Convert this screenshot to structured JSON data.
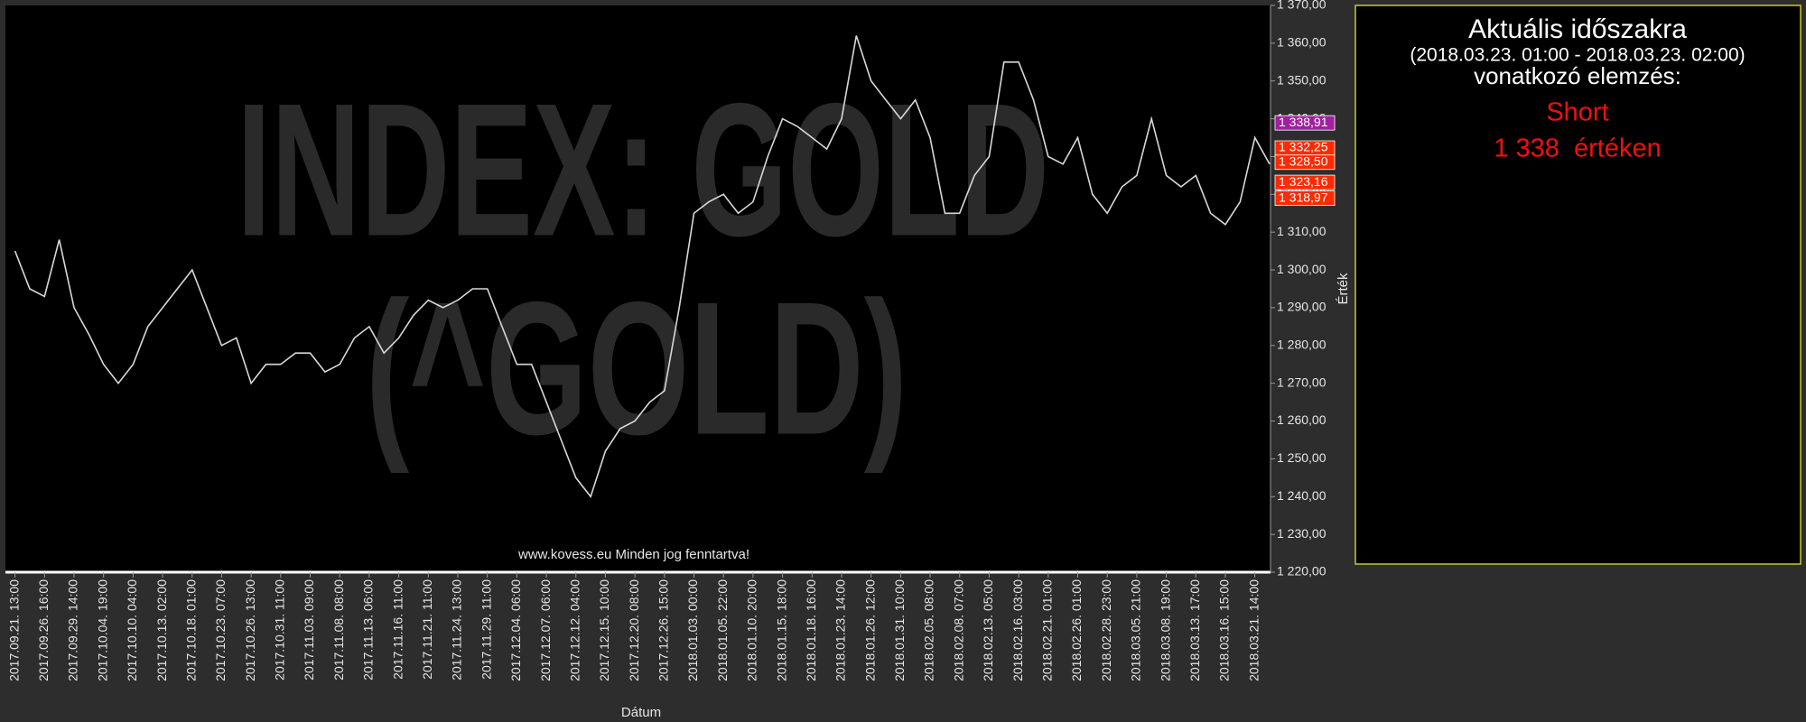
{
  "chart_data": {
    "type": "line",
    "watermark": [
      "INDEX: GOLD",
      "(^GOLD)"
    ],
    "footer": "www.kovess.eu Minden jog fenntartva!",
    "x_label": "Dátum",
    "y_label": "Érték",
    "color": "#d8d8d8",
    "categories": [
      "2017.09.21. 13:00",
      null,
      "2017.09.26. 16:00",
      null,
      "2017.09.29. 14:00",
      null,
      "2017.10.04. 19:00",
      null,
      "2017.10.10. 04:00",
      null,
      "2017.10.13. 02:00",
      null,
      "2017.10.18. 01:00",
      null,
      "2017.10.23. 07:00",
      null,
      "2017.10.26. 13:00",
      null,
      "2017.10.31. 11:00",
      null,
      "2017.11.03. 09:00",
      null,
      "2017.11.08. 08:00",
      null,
      "2017.11.13. 06:00",
      null,
      "2017.11.16. 11:00",
      null,
      "2017.11.21. 11:00",
      null,
      "2017.11.24. 13:00",
      null,
      "2017.11.29. 11:00",
      null,
      "2017.12.04. 06:00",
      null,
      "2017.12.07. 06:00",
      null,
      "2017.12.12. 04:00",
      null,
      "2017.12.15. 10:00",
      null,
      "2017.12.20. 08:00",
      null,
      "2017.12.26. 15:00",
      null,
      "2018.01.03. 00:00",
      null,
      "2018.01.05. 22:00",
      null,
      "2018.01.10. 20:00",
      null,
      "2018.01.15. 18:00",
      null,
      "2018.01.18. 16:00",
      null,
      "2018.01.23. 14:00",
      null,
      "2018.01.26. 12:00",
      null,
      "2018.01.31. 10:00",
      null,
      "2018.02.05. 08:00",
      null,
      "2018.02.08. 07:00",
      null,
      "2018.02.13. 05:00",
      null,
      "2018.02.16. 03:00",
      null,
      "2018.02.21. 01:00",
      null,
      "2018.02.26. 01:00",
      null,
      "2018.02.28. 23:00",
      null,
      "2018.03.05. 21:00",
      null,
      "2018.03.08. 19:00",
      null,
      "2018.03.13. 17:00",
      null,
      "2018.03.16. 15:00",
      null,
      "2018.03.21. 14:00",
      null
    ],
    "values": [
      1305,
      1295,
      1293,
      1308,
      1290,
      1283,
      1275,
      1270,
      1275,
      1285,
      1290,
      1295,
      1300,
      1290,
      1280,
      1282,
      1270,
      1275,
      1275,
      1278,
      1278,
      1273,
      1275,
      1282,
      1285,
      1278,
      1282,
      1288,
      1292,
      1290,
      1292,
      1295,
      1295,
      1285,
      1275,
      1275,
      1265,
      1255,
      1245,
      1240,
      1252,
      1258,
      1260,
      1265,
      1268,
      1290,
      1315,
      1318,
      1320,
      1315,
      1318,
      1330,
      1340,
      1338,
      1335,
      1332,
      1340,
      1362,
      1350,
      1345,
      1340,
      1345,
      1335,
      1315,
      1315,
      1325,
      1330,
      1355,
      1355,
      1345,
      1330,
      1328,
      1335,
      1320,
      1315,
      1322,
      1325,
      1340,
      1325,
      1322,
      1325,
      1315,
      1312,
      1318,
      1335,
      1328
    ],
    "ylim": [
      1220,
      1370
    ],
    "yticks": [
      {
        "value": 1220,
        "label": "1 220,00"
      },
      {
        "value": 1230,
        "label": "1 230,00"
      },
      {
        "value": 1240,
        "label": "1 240,00"
      },
      {
        "value": 1250,
        "label": "1 250,00"
      },
      {
        "value": 1260,
        "label": "1 260,00"
      },
      {
        "value": 1270,
        "label": "1 270,00"
      },
      {
        "value": 1280,
        "label": "1 280,00"
      },
      {
        "value": 1290,
        "label": "1 290,00"
      },
      {
        "value": 1300,
        "label": "1 300,00"
      },
      {
        "value": 1310,
        "label": "1 310,00"
      },
      {
        "value": 1320,
        "label": "1 320,00"
      },
      {
        "value": 1330,
        "label": "1 330,00"
      },
      {
        "value": 1340,
        "label": "1 340,00"
      },
      {
        "value": 1350,
        "label": "1 350,00"
      },
      {
        "value": 1360,
        "label": "1 360,00"
      },
      {
        "value": 1370,
        "label": "1 370,00"
      }
    ],
    "price_tags": [
      {
        "value": 1338.91,
        "label": "1 338,91",
        "color": "#a020a0"
      },
      {
        "value": 1332.25,
        "label": "1 332,25",
        "color": "#ff2a00"
      },
      {
        "value": 1328.5,
        "label": "1 328,50",
        "color": "#ff2a00"
      },
      {
        "value": 1323.16,
        "label": "1 323,16",
        "color": "#ff2a00"
      },
      {
        "value": 1318.97,
        "label": "1 318,97",
        "color": "#ff2a00"
      }
    ]
  },
  "panel": {
    "title": "Aktuális időszakra",
    "period": "(2018.03.23. 01:00 - 2018.03.23. 02:00)",
    "subtitle": "vonatkozó elemzés:",
    "signal": "Short",
    "level": "1 338  értéken"
  }
}
